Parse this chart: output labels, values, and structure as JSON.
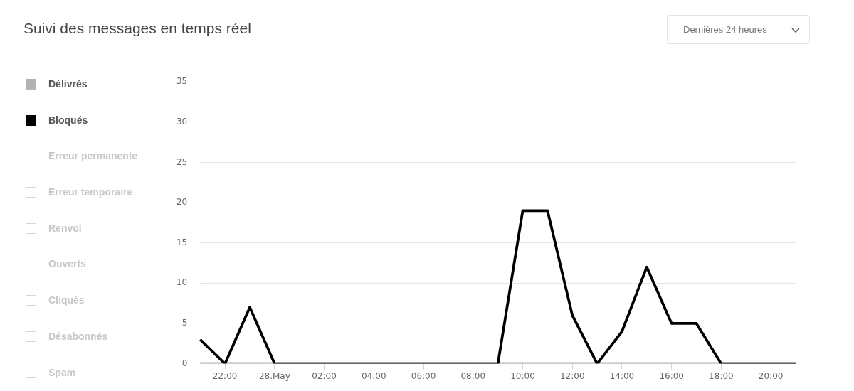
{
  "chart_data": {
    "type": "line",
    "title": "Suivi des messages en temps réel",
    "annotations": [
      "Dernières 24 heures"
    ],
    "categories": [
      null,
      "22:00",
      null,
      "28.May",
      null,
      "02:00",
      null,
      "04:00",
      null,
      "06:00",
      null,
      "08:00",
      null,
      "10:00",
      null,
      "12:00",
      null,
      "14:00",
      null,
      "16:00",
      null,
      "18:00",
      null,
      "20:00",
      null
    ],
    "series": [
      {
        "name": "Délivrés",
        "color": "#b3b3b3",
        "values": [
          0,
          0,
          0,
          0,
          0,
          0,
          0,
          0,
          0,
          0,
          0,
          0,
          0,
          0,
          0,
          0,
          0,
          0,
          0,
          0,
          0,
          0,
          0,
          0,
          0
        ]
      },
      {
        "name": "Bloqués",
        "color": "#000000",
        "values": [
          3,
          0,
          7,
          0,
          0,
          0,
          0,
          0,
          0,
          0,
          0,
          0,
          0,
          19,
          19,
          6,
          0,
          4,
          12,
          5,
          5,
          0,
          0,
          0,
          0
        ]
      },
      {
        "name": "Erreur permanente",
        "color": null,
        "values": [
          null,
          null,
          null,
          null,
          null,
          null,
          null,
          null,
          null,
          null,
          null,
          null,
          null,
          null,
          null,
          null,
          null,
          null,
          null,
          null,
          null,
          null,
          null,
          null,
          null
        ]
      },
      {
        "name": "Erreur temporaire",
        "color": null,
        "values": [
          null,
          null,
          null,
          null,
          null,
          null,
          null,
          null,
          null,
          null,
          null,
          null,
          null,
          null,
          null,
          null,
          null,
          null,
          null,
          null,
          null,
          null,
          null,
          null,
          null
        ]
      },
      {
        "name": "Renvoi",
        "color": null,
        "values": [
          null,
          null,
          null,
          null,
          null,
          null,
          null,
          null,
          null,
          null,
          null,
          null,
          null,
          null,
          null,
          null,
          null,
          null,
          null,
          null,
          null,
          null,
          null,
          null,
          null
        ]
      },
      {
        "name": "Ouverts",
        "color": null,
        "values": [
          null,
          null,
          null,
          null,
          null,
          null,
          null,
          null,
          null,
          null,
          null,
          null,
          null,
          null,
          null,
          null,
          null,
          null,
          null,
          null,
          null,
          null,
          null,
          null,
          null
        ]
      },
      {
        "name": "Cliqués",
        "color": null,
        "values": [
          null,
          null,
          null,
          null,
          null,
          null,
          null,
          null,
          null,
          null,
          null,
          null,
          null,
          null,
          null,
          null,
          null,
          null,
          null,
          null,
          null,
          null,
          null,
          null,
          null
        ]
      },
      {
        "name": "Désabonnés",
        "color": null,
        "values": [
          null,
          null,
          null,
          null,
          null,
          null,
          null,
          null,
          null,
          null,
          null,
          null,
          null,
          null,
          null,
          null,
          null,
          null,
          null,
          null,
          null,
          null,
          null,
          null,
          null
        ]
      },
      {
        "name": "Spam",
        "color": null,
        "values": [
          null,
          null,
          null,
          null,
          null,
          null,
          null,
          null,
          null,
          null,
          null,
          null,
          null,
          null,
          null,
          null,
          null,
          null,
          null,
          null,
          null,
          null,
          null,
          null,
          null
        ]
      }
    ],
    "ylim": [
      0,
      35
    ],
    "yticks": [
      0,
      5,
      10,
      15,
      20,
      25,
      30,
      35
    ],
    "grid": "y",
    "legend": "left",
    "marker": "none",
    "line_style": "solid"
  }
}
